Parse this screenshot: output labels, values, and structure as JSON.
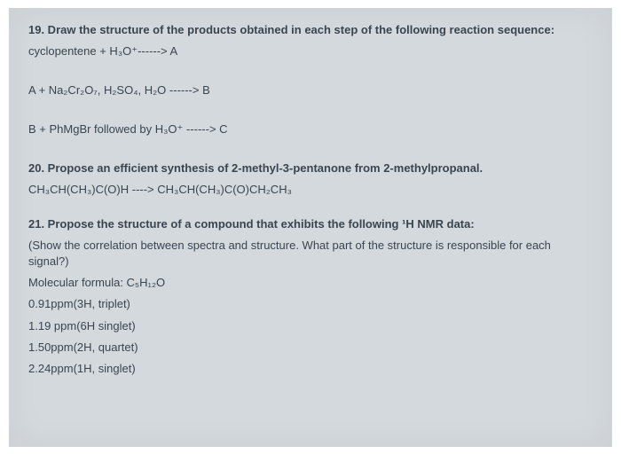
{
  "q19": {
    "prompt": "19. Draw the structure of the products obtained in each step of the following reaction sequence:",
    "step1": "cyclopentene + H₃O⁺------> A",
    "step2": "A + Na₂Cr₂O₇, H₂SO₄, H₂O ------> B",
    "step3": "B + PhMgBr  followed by  H₃O⁺ ------> C"
  },
  "q20": {
    "prompt": "20.  Propose an efficient synthesis of 2-methyl-3-pentanone from 2-methylpropanal.",
    "reaction": "CH₃CH(CH₃)C(O)H ----> CH₃CH(CH₃)C(O)CH₂CH₃"
  },
  "q21": {
    "prompt": "21. Propose the structure of a compound that exhibits the following ¹H NMR data:",
    "note": "(Show the correlation between spectra and structure. What part of the structure is responsible for each signal?)",
    "formula": "Molecular formula: C₅H₁₂O",
    "peak1": "0.91ppm(3H, triplet)",
    "peak2": "1.19 ppm(6H singlet)",
    "peak3": "1.50ppm(2H, quartet)",
    "peak4": "2.24ppm(1H, singlet)"
  },
  "colors": {
    "paper_bg": "#d4d9dd",
    "text": "#3a4550"
  },
  "typography": {
    "body_fontsize": 13,
    "sub_fontsize": 10
  }
}
